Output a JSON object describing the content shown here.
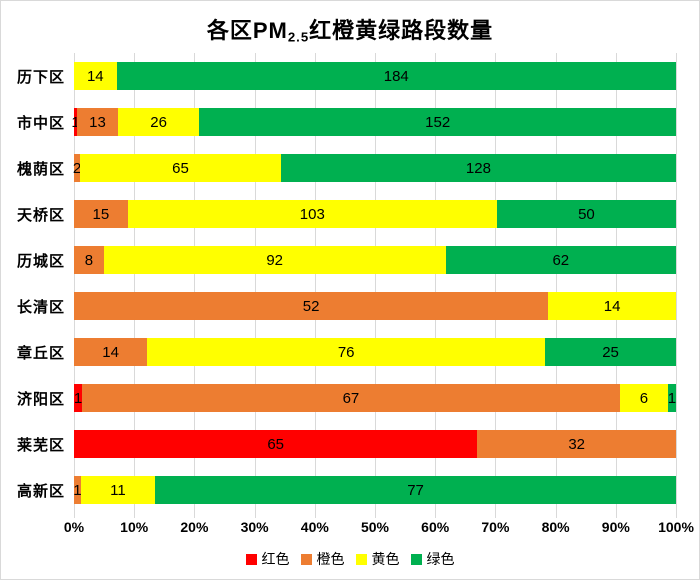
{
  "title": {
    "prefix": "各区PM",
    "subscript": "2.5",
    "suffix": "红橙黄绿路段数量"
  },
  "colors": {
    "gridline": "#d9d9d9",
    "background": "#ffffff",
    "label_text": "#000000"
  },
  "chart_data": {
    "type": "bar",
    "orientation": "horizontal",
    "stacking": "percent",
    "title": "各区PM2.5红橙黄绿路段数量",
    "categories": [
      "历下区",
      "市中区",
      "槐荫区",
      "天桥区",
      "历城区",
      "长清区",
      "章丘区",
      "济阳区",
      "莱芜区",
      "高新区"
    ],
    "series": [
      {
        "key": "red",
        "name": "红色",
        "color": "#FF0000",
        "values": [
          0,
          1,
          0,
          0,
          0,
          0,
          0,
          1,
          65,
          0
        ]
      },
      {
        "key": "orange",
        "name": "橙色",
        "color": "#ED7D31",
        "values": [
          0,
          13,
          2,
          15,
          8,
          52,
          14,
          67,
          32,
          1
        ]
      },
      {
        "key": "yellow",
        "name": "黄色",
        "color": "#FFFF00",
        "values": [
          14,
          26,
          65,
          103,
          92,
          14,
          76,
          6,
          0,
          11
        ]
      },
      {
        "key": "green",
        "name": "绿色",
        "color": "#00B050",
        "values": [
          184,
          152,
          128,
          50,
          62,
          0,
          25,
          1,
          0,
          77
        ]
      }
    ],
    "x_ticks": [
      "0%",
      "10%",
      "20%",
      "30%",
      "40%",
      "50%",
      "60%",
      "70%",
      "80%",
      "90%",
      "100%"
    ],
    "xlim": [
      0,
      100
    ],
    "grid": "vertical",
    "legend_position": "bottom",
    "data_labels": "shown for every non-zero segment, centered on segment"
  }
}
